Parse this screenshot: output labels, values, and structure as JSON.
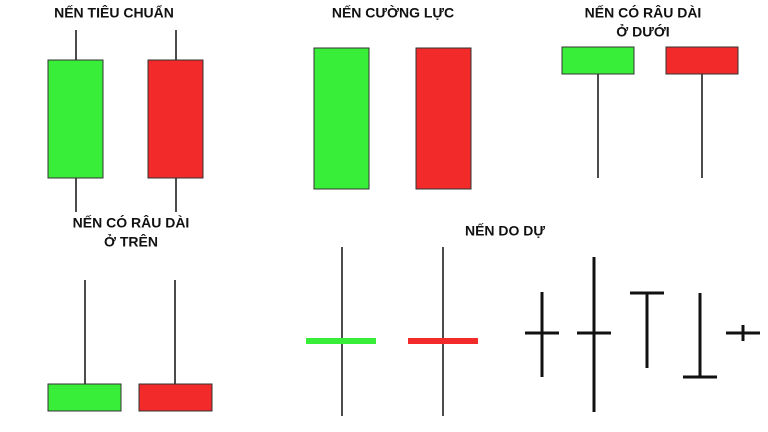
{
  "groups": [
    {
      "title": [
        "NẾN TIÊU CHUẨN"
      ]
    },
    {
      "title": [
        "NẾN CƯỜNG LỰC"
      ]
    },
    {
      "title": [
        "NẾN CÓ RÂU DÀI",
        "Ở DƯỚI"
      ]
    },
    {
      "title": [
        "NẾN CÓ RÂU DÀI",
        "Ở TRÊN"
      ]
    },
    {
      "title": [
        "NẾN DO DỰ"
      ]
    }
  ]
}
